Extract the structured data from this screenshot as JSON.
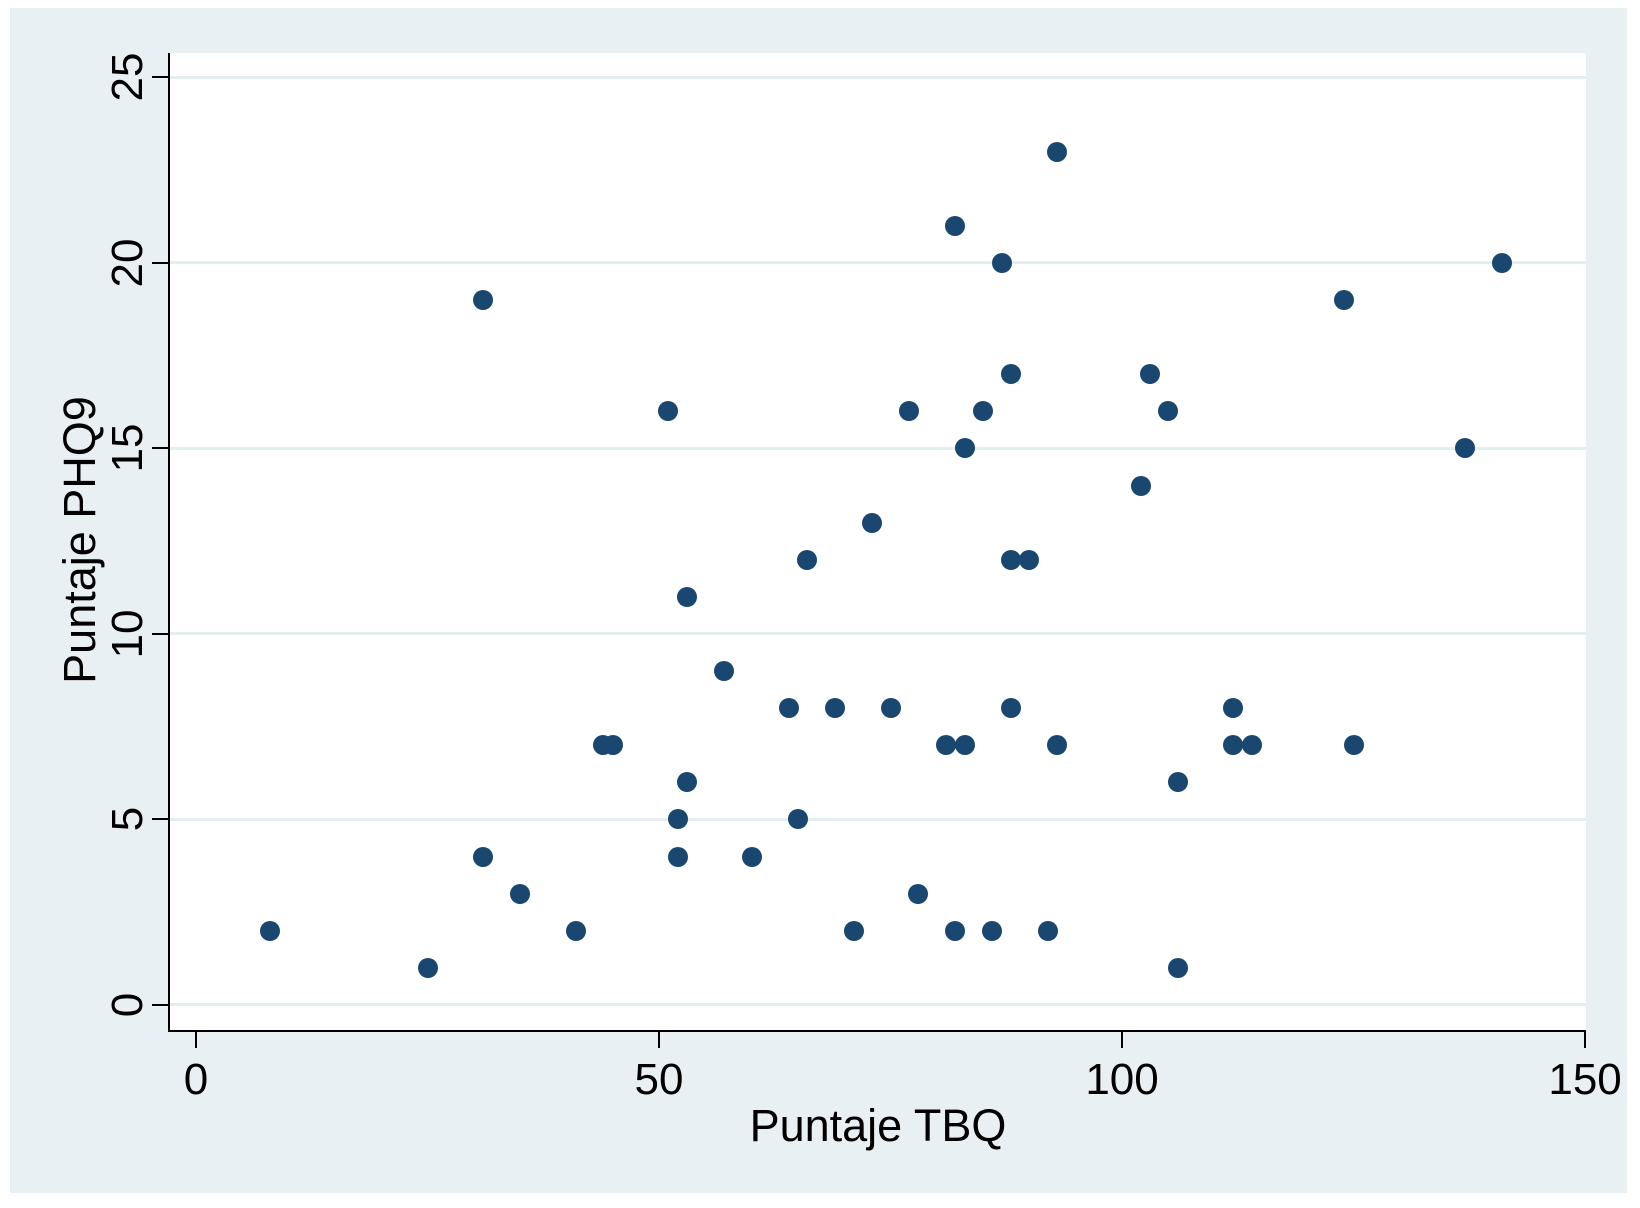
{
  "chart_data": {
    "type": "scatter",
    "xlabel": "Puntaje TBQ",
    "ylabel": "Puntaje PHQ9",
    "xticks": [
      0,
      50,
      100,
      150
    ],
    "yticks": [
      0,
      5,
      10,
      15,
      20,
      25
    ],
    "xlim": [
      -2.81,
      150.1
    ],
    "ylim": [
      -0.73,
      25.66
    ],
    "grid": "horizontal-y",
    "legend": "none",
    "marker_color": "#1a476f",
    "background_color": "#e9f0f3",
    "plot_background": "#ffffff",
    "gridline_color": "#e4edef",
    "axis_color": "#000000",
    "points": [
      [
        8,
        2
      ],
      [
        25,
        1
      ],
      [
        31,
        4
      ],
      [
        31,
        19
      ],
      [
        35,
        3
      ],
      [
        41,
        2
      ],
      [
        44,
        7
      ],
      [
        45,
        7
      ],
      [
        51,
        16
      ],
      [
        52,
        4
      ],
      [
        52,
        5
      ],
      [
        53,
        6
      ],
      [
        53,
        11
      ],
      [
        57,
        9
      ],
      [
        60,
        4
      ],
      [
        64,
        8
      ],
      [
        65,
        5
      ],
      [
        66,
        12
      ],
      [
        69,
        8
      ],
      [
        71,
        2
      ],
      [
        73,
        13
      ],
      [
        75,
        8
      ],
      [
        77,
        16
      ],
      [
        78,
        3
      ],
      [
        81,
        7
      ],
      [
        82,
        2
      ],
      [
        82,
        21
      ],
      [
        83,
        7
      ],
      [
        83,
        15
      ],
      [
        85,
        16
      ],
      [
        86,
        2
      ],
      [
        87,
        20
      ],
      [
        88,
        8
      ],
      [
        88,
        12
      ],
      [
        88,
        17
      ],
      [
        90,
        12
      ],
      [
        92,
        2
      ],
      [
        93,
        7
      ],
      [
        93,
        23
      ],
      [
        102,
        14
      ],
      [
        103,
        17
      ],
      [
        105,
        16
      ],
      [
        106,
        1
      ],
      [
        106,
        6
      ],
      [
        112,
        7
      ],
      [
        112,
        8
      ],
      [
        114,
        7
      ],
      [
        124,
        19
      ],
      [
        125,
        7
      ],
      [
        137,
        15
      ],
      [
        141,
        20
      ]
    ]
  }
}
